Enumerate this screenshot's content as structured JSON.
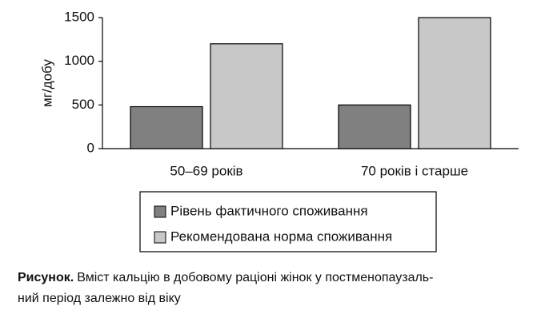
{
  "chart_data": {
    "type": "bar",
    "y_label": "мг/добу",
    "categories": [
      "50–69 років",
      "70 років і старше"
    ],
    "series": [
      {
        "name": "Рівень фактичного споживання",
        "color": "#808080",
        "values": [
          480,
          500
        ]
      },
      {
        "name": "Рекомендована норма споживання",
        "color": "#c8c8c8",
        "values": [
          1200,
          1500
        ]
      }
    ],
    "ylim": [
      0,
      1500
    ],
    "yticks": [
      0,
      500,
      1000,
      1500
    ],
    "grid": false,
    "legend": "bottom",
    "caption_label": "Рисунок.",
    "caption_lines": [
      "Вміст кальцію в добовому раціоні жінок у постменопаузаль-",
      "ний період залежно від віку"
    ]
  }
}
